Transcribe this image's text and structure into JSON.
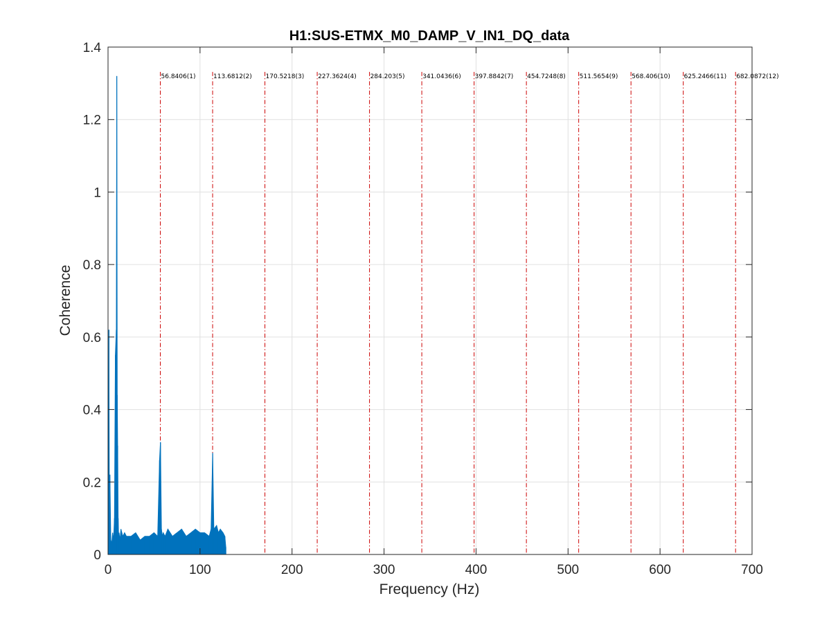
{
  "chart_data": {
    "type": "line",
    "title": "H1:SUS-ETMX_M0_DAMP_V_IN1_DQ_data",
    "xlabel": "Frequency (Hz)",
    "ylabel": "Coherence",
    "xlim": [
      0,
      700
    ],
    "ylim": [
      0,
      1.4
    ],
    "xticks": [
      0,
      100,
      200,
      300,
      400,
      500,
      600,
      700
    ],
    "xtick_labels": [
      "0",
      "100",
      "200",
      "300",
      "400",
      "500",
      "600",
      "700"
    ],
    "yticks": [
      0,
      0.2,
      0.4,
      0.6,
      0.8,
      1.0,
      1.2,
      1.4
    ],
    "ytick_labels": [
      "0",
      "0.2",
      "0.4",
      "0.6",
      "0.8",
      "1",
      "1.2",
      "1.4"
    ],
    "grid": true,
    "series": [
      {
        "color": "#0072bd",
        "x": [
          0.5,
          1,
          1.5,
          2,
          3,
          4,
          5,
          6,
          7,
          8,
          9,
          9.5,
          10,
          10.5,
          11,
          11.5,
          12,
          13,
          14,
          16,
          18,
          20,
          25,
          30,
          35,
          40,
          45,
          50,
          54,
          56,
          57,
          58,
          59,
          60,
          62,
          65,
          70,
          75,
          80,
          85,
          90,
          95,
          100,
          105,
          110,
          112,
          113.7,
          115,
          118,
          120,
          122,
          125,
          127,
          128
        ],
        "y": [
          0.1,
          0.62,
          0.05,
          0.22,
          0.04,
          0.03,
          0.06,
          0.04,
          0.1,
          0.55,
          0.62,
          1.32,
          0.44,
          0.3,
          0.1,
          0.05,
          0.06,
          0.04,
          0.07,
          0.05,
          0.06,
          0.05,
          0.05,
          0.06,
          0.04,
          0.05,
          0.05,
          0.06,
          0.05,
          0.26,
          0.31,
          0.07,
          0.05,
          0.06,
          0.05,
          0.07,
          0.05,
          0.06,
          0.07,
          0.05,
          0.06,
          0.07,
          0.06,
          0.06,
          0.05,
          0.07,
          0.28,
          0.07,
          0.08,
          0.06,
          0.07,
          0.06,
          0.05,
          0.02
        ]
      }
    ],
    "harmonics": [
      {
        "x": 56.8406,
        "label": "56.8406(1)"
      },
      {
        "x": 113.6812,
        "label": "113.6812(2)"
      },
      {
        "x": 170.5218,
        "label": "170.5218(3)"
      },
      {
        "x": 227.3624,
        "label": "227.3624(4)"
      },
      {
        "x": 284.203,
        "label": "284.203(5)"
      },
      {
        "x": 341.0436,
        "label": "341.0436(6)"
      },
      {
        "x": 397.8842,
        "label": "397.8842(7)"
      },
      {
        "x": 454.7248,
        "label": "454.7248(8)"
      },
      {
        "x": 511.5654,
        "label": "511.5654(9)"
      },
      {
        "x": 568.406,
        "label": "568.406(10)"
      },
      {
        "x": 625.2466,
        "label": "625.2466(11)"
      },
      {
        "x": 682.0872,
        "label": "682.0872(12)"
      }
    ],
    "harmonic_color": "#cc0000",
    "harmonic_label_y": 1.32
  }
}
